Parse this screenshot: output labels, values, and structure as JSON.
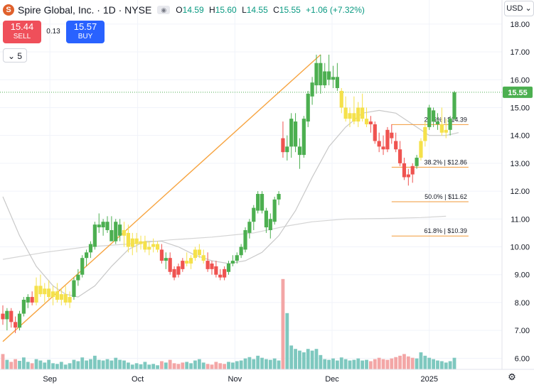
{
  "header": {
    "logo_letter": "S",
    "title": "Spire Global, Inc. · 1D · NYSE",
    "open_label": "O",
    "open": "14.59",
    "high_label": "H",
    "high": "15.60",
    "low_label": "L",
    "low": "14.55",
    "close_label": "C",
    "close": "15.55",
    "change": "+1.06 (+7.32%)"
  },
  "trade": {
    "sell_price": "15.44",
    "sell_label": "SELL",
    "spread": "0.13",
    "buy_price": "15.57",
    "buy_label": "BUY"
  },
  "indicators_toggle": {
    "count": "5"
  },
  "currency": "USD",
  "price_label": "15.55",
  "colors": {
    "up": "#4caf50",
    "down": "#ef5350",
    "neutral": "#f5e14a",
    "volume_up": "#7ec8bf",
    "volume_down": "#f3a6a6",
    "trendline": "#f7a440",
    "fib": "#f29a38",
    "ma_fast": "#c8c8c8",
    "ma_slow": "#d4d4d4"
  },
  "chart_data": {
    "type": "candlestick",
    "y_axis": {
      "min": 5.6,
      "max": 18.2,
      "ticks": [
        "18.00",
        "17.00",
        "16.00",
        "15.00",
        "14.00",
        "13.00",
        "12.00",
        "11.00",
        "10.00",
        "9.00",
        "8.00",
        "7.00",
        "6.00"
      ]
    },
    "x_axis": {
      "start": "2024-08-19",
      "end": "2025-01-10",
      "ticks": [
        {
          "label": "Sep",
          "date": "2024-09-03"
        },
        {
          "label": "Oct",
          "date": "2024-10-01"
        },
        {
          "label": "Nov",
          "date": "2024-11-01"
        },
        {
          "label": "Dec",
          "date": "2024-12-02"
        },
        {
          "label": "2025",
          "date": "2025-01-02"
        }
      ]
    },
    "last_close": 15.55,
    "candles": [
      {
        "o": 7.6,
        "h": 7.9,
        "l": 7.2,
        "c": 7.4,
        "v": 0.45,
        "k": "down"
      },
      {
        "o": 7.4,
        "h": 7.8,
        "l": 7.0,
        "c": 7.7,
        "v": 0.28,
        "k": "up"
      },
      {
        "o": 7.7,
        "h": 7.8,
        "l": 7.1,
        "c": 7.3,
        "v": 0.22,
        "k": "down"
      },
      {
        "o": 7.3,
        "h": 7.5,
        "l": 6.9,
        "c": 7.1,
        "v": 0.3,
        "k": "down"
      },
      {
        "o": 7.1,
        "h": 7.7,
        "l": 7.0,
        "c": 7.6,
        "v": 0.25,
        "k": "up"
      },
      {
        "o": 7.6,
        "h": 8.2,
        "l": 7.5,
        "c": 8.1,
        "v": 0.35,
        "k": "up"
      },
      {
        "o": 8.0,
        "h": 8.3,
        "l": 7.8,
        "c": 8.2,
        "v": 0.22,
        "k": "up"
      },
      {
        "o": 8.2,
        "h": 8.4,
        "l": 7.9,
        "c": 8.0,
        "v": 0.18,
        "k": "down"
      },
      {
        "o": 8.0,
        "h": 8.9,
        "l": 7.9,
        "c": 8.6,
        "v": 0.3,
        "k": "neutral"
      },
      {
        "o": 8.6,
        "h": 9.0,
        "l": 8.2,
        "c": 8.3,
        "v": 0.26,
        "k": "neutral"
      },
      {
        "o": 8.3,
        "h": 8.7,
        "l": 8.0,
        "c": 8.5,
        "v": 0.2,
        "k": "neutral"
      },
      {
        "o": 8.5,
        "h": 8.8,
        "l": 8.1,
        "c": 8.2,
        "v": 0.28,
        "k": "neutral"
      },
      {
        "o": 8.2,
        "h": 8.6,
        "l": 7.9,
        "c": 8.4,
        "v": 0.18,
        "k": "neutral"
      },
      {
        "o": 8.4,
        "h": 8.7,
        "l": 8.0,
        "c": 8.1,
        "v": 0.16,
        "k": "neutral"
      },
      {
        "o": 8.1,
        "h": 8.5,
        "l": 7.9,
        "c": 8.3,
        "v": 0.22,
        "k": "neutral"
      },
      {
        "o": 8.3,
        "h": 8.6,
        "l": 7.9,
        "c": 8.0,
        "v": 0.14,
        "k": "neutral"
      },
      {
        "o": 8.0,
        "h": 8.4,
        "l": 7.8,
        "c": 8.2,
        "v": 0.18,
        "k": "neutral"
      },
      {
        "o": 8.2,
        "h": 8.9,
        "l": 8.1,
        "c": 8.8,
        "v": 0.28,
        "k": "up"
      },
      {
        "o": 8.8,
        "h": 9.2,
        "l": 8.6,
        "c": 9.0,
        "v": 0.24,
        "k": "up"
      },
      {
        "o": 9.0,
        "h": 9.7,
        "l": 8.9,
        "c": 9.6,
        "v": 0.35,
        "k": "up"
      },
      {
        "o": 9.6,
        "h": 9.9,
        "l": 9.3,
        "c": 9.8,
        "v": 0.26,
        "k": "up"
      },
      {
        "o": 9.8,
        "h": 10.2,
        "l": 9.6,
        "c": 10.1,
        "v": 0.3,
        "k": "up"
      },
      {
        "o": 10.0,
        "h": 10.9,
        "l": 9.9,
        "c": 10.8,
        "v": 0.4,
        "k": "up"
      },
      {
        "o": 10.8,
        "h": 11.2,
        "l": 10.5,
        "c": 10.7,
        "v": 0.28,
        "k": "up"
      },
      {
        "o": 10.7,
        "h": 11.0,
        "l": 10.4,
        "c": 10.9,
        "v": 0.26,
        "k": "up"
      },
      {
        "o": 10.9,
        "h": 11.1,
        "l": 10.5,
        "c": 10.6,
        "v": 0.3,
        "k": "up"
      },
      {
        "o": 10.6,
        "h": 11.1,
        "l": 10.3,
        "c": 10.2,
        "v": 0.26,
        "k": "up"
      },
      {
        "o": 10.2,
        "h": 11.0,
        "l": 10.1,
        "c": 10.9,
        "v": 0.34,
        "k": "up"
      },
      {
        "o": 10.8,
        "h": 11.0,
        "l": 10.2,
        "c": 10.4,
        "v": 0.28,
        "k": "up"
      },
      {
        "o": 10.4,
        "h": 10.9,
        "l": 10.0,
        "c": 10.6,
        "v": 0.26,
        "k": "neutral"
      },
      {
        "o": 10.5,
        "h": 10.8,
        "l": 9.8,
        "c": 10.0,
        "v": 0.2,
        "k": "neutral"
      },
      {
        "o": 10.0,
        "h": 10.5,
        "l": 9.7,
        "c": 10.3,
        "v": 0.14,
        "k": "neutral"
      },
      {
        "o": 10.3,
        "h": 10.5,
        "l": 9.8,
        "c": 10.1,
        "v": 0.18,
        "k": "neutral"
      },
      {
        "o": 10.1,
        "h": 10.4,
        "l": 9.9,
        "c": 10.2,
        "v": 0.15,
        "k": "neutral"
      },
      {
        "o": 10.2,
        "h": 10.4,
        "l": 9.8,
        "c": 9.9,
        "v": 0.22,
        "k": "neutral"
      },
      {
        "o": 9.9,
        "h": 10.2,
        "l": 9.7,
        "c": 10.0,
        "v": 0.14,
        "k": "neutral"
      },
      {
        "o": 10.0,
        "h": 10.3,
        "l": 9.8,
        "c": 10.1,
        "v": 0.16,
        "k": "neutral"
      },
      {
        "o": 10.1,
        "h": 10.2,
        "l": 9.8,
        "c": 9.9,
        "v": 0.12,
        "k": "neutral"
      },
      {
        "o": 9.9,
        "h": 10.1,
        "l": 9.4,
        "c": 9.5,
        "v": 0.24,
        "k": "down"
      },
      {
        "o": 9.5,
        "h": 9.8,
        "l": 9.2,
        "c": 9.6,
        "v": 0.2,
        "k": "up"
      },
      {
        "o": 9.6,
        "h": 9.8,
        "l": 9.0,
        "c": 9.1,
        "v": 0.28,
        "k": "down"
      },
      {
        "o": 9.2,
        "h": 9.3,
        "l": 8.8,
        "c": 8.9,
        "v": 0.18,
        "k": "down"
      },
      {
        "o": 9.0,
        "h": 9.4,
        "l": 8.9,
        "c": 9.3,
        "v": 0.16,
        "k": "down"
      },
      {
        "o": 9.2,
        "h": 9.6,
        "l": 9.1,
        "c": 9.5,
        "v": 0.2,
        "k": "down"
      },
      {
        "o": 9.5,
        "h": 9.8,
        "l": 9.3,
        "c": 9.4,
        "v": 0.22,
        "k": "neutral"
      },
      {
        "o": 9.4,
        "h": 9.7,
        "l": 9.2,
        "c": 9.6,
        "v": 0.18,
        "k": "neutral"
      },
      {
        "o": 9.6,
        "h": 10.0,
        "l": 9.5,
        "c": 9.9,
        "v": 0.26,
        "k": "neutral"
      },
      {
        "o": 9.9,
        "h": 10.1,
        "l": 9.6,
        "c": 9.7,
        "v": 0.3,
        "k": "neutral"
      },
      {
        "o": 9.7,
        "h": 9.9,
        "l": 9.4,
        "c": 9.5,
        "v": 0.2,
        "k": "neutral"
      },
      {
        "o": 9.5,
        "h": 9.8,
        "l": 9.1,
        "c": 9.2,
        "v": 0.16,
        "k": "down"
      },
      {
        "o": 9.2,
        "h": 9.5,
        "l": 9.0,
        "c": 9.4,
        "v": 0.14,
        "k": "down"
      },
      {
        "o": 9.3,
        "h": 9.5,
        "l": 8.9,
        "c": 9.0,
        "v": 0.22,
        "k": "down"
      },
      {
        "o": 9.0,
        "h": 9.2,
        "l": 8.8,
        "c": 8.9,
        "v": 0.18,
        "k": "down"
      },
      {
        "o": 8.9,
        "h": 9.3,
        "l": 8.8,
        "c": 9.2,
        "v": 0.16,
        "k": "down"
      },
      {
        "o": 9.1,
        "h": 9.5,
        "l": 9.0,
        "c": 9.4,
        "v": 0.22,
        "k": "up"
      },
      {
        "o": 9.4,
        "h": 9.7,
        "l": 9.3,
        "c": 9.5,
        "v": 0.2,
        "k": "up"
      },
      {
        "o": 9.5,
        "h": 9.8,
        "l": 9.4,
        "c": 9.7,
        "v": 0.24,
        "k": "up"
      },
      {
        "o": 9.7,
        "h": 10.1,
        "l": 9.6,
        "c": 10.0,
        "v": 0.26,
        "k": "up"
      },
      {
        "o": 9.9,
        "h": 10.7,
        "l": 9.8,
        "c": 10.6,
        "v": 0.32,
        "k": "up"
      },
      {
        "o": 10.5,
        "h": 11.0,
        "l": 10.3,
        "c": 10.9,
        "v": 0.36,
        "k": "up"
      },
      {
        "o": 10.9,
        "h": 11.5,
        "l": 10.6,
        "c": 11.4,
        "v": 0.3,
        "k": "up"
      },
      {
        "o": 11.3,
        "h": 12.0,
        "l": 11.2,
        "c": 11.9,
        "v": 0.4,
        "k": "up"
      },
      {
        "o": 11.9,
        "h": 12.0,
        "l": 11.2,
        "c": 11.3,
        "v": 0.34,
        "k": "up"
      },
      {
        "o": 11.3,
        "h": 11.4,
        "l": 10.5,
        "c": 10.7,
        "v": 0.3,
        "k": "up"
      },
      {
        "o": 10.6,
        "h": 11.2,
        "l": 10.3,
        "c": 11.0,
        "v": 0.28,
        "k": "up"
      },
      {
        "o": 10.9,
        "h": 11.8,
        "l": 10.8,
        "c": 11.7,
        "v": 0.32,
        "k": "up"
      },
      {
        "o": 11.7,
        "h": 12.0,
        "l": 11.5,
        "c": 11.9,
        "v": 0.26,
        "k": "up"
      },
      {
        "o": 13.9,
        "h": 14.5,
        "l": 13.2,
        "c": 13.4,
        "v": 2.65,
        "k": "down"
      },
      {
        "o": 13.4,
        "h": 14.0,
        "l": 13.1,
        "c": 13.6,
        "v": 1.65,
        "k": "up"
      },
      {
        "o": 13.6,
        "h": 14.8,
        "l": 13.2,
        "c": 14.6,
        "v": 0.7,
        "k": "up"
      },
      {
        "o": 14.5,
        "h": 14.8,
        "l": 13.4,
        "c": 13.6,
        "v": 0.6,
        "k": "up"
      },
      {
        "o": 13.6,
        "h": 13.9,
        "l": 12.8,
        "c": 13.3,
        "v": 0.55,
        "k": "up"
      },
      {
        "o": 13.3,
        "h": 14.7,
        "l": 13.2,
        "c": 14.6,
        "v": 0.5,
        "k": "up"
      },
      {
        "o": 14.5,
        "h": 15.6,
        "l": 14.3,
        "c": 15.5,
        "v": 0.6,
        "k": "up"
      },
      {
        "o": 15.4,
        "h": 16.1,
        "l": 15.1,
        "c": 15.9,
        "v": 0.55,
        "k": "up"
      },
      {
        "o": 15.8,
        "h": 16.9,
        "l": 15.5,
        "c": 16.6,
        "v": 0.6,
        "k": "up"
      },
      {
        "o": 16.6,
        "h": 16.9,
        "l": 15.5,
        "c": 15.8,
        "v": 0.42,
        "k": "up"
      },
      {
        "o": 15.8,
        "h": 16.6,
        "l": 15.7,
        "c": 16.3,
        "v": 0.3,
        "k": "up"
      },
      {
        "o": 16.3,
        "h": 16.9,
        "l": 15.8,
        "c": 16.0,
        "v": 0.28,
        "k": "up"
      },
      {
        "o": 16.0,
        "h": 16.5,
        "l": 15.7,
        "c": 16.1,
        "v": 0.32,
        "k": "up"
      },
      {
        "o": 16.1,
        "h": 16.6,
        "l": 15.6,
        "c": 15.7,
        "v": 0.26,
        "k": "up"
      },
      {
        "o": 15.6,
        "h": 15.7,
        "l": 14.8,
        "c": 15.0,
        "v": 0.35,
        "k": "neutral"
      },
      {
        "o": 15.0,
        "h": 15.4,
        "l": 14.5,
        "c": 14.6,
        "v": 0.3,
        "k": "neutral"
      },
      {
        "o": 14.6,
        "h": 15.0,
        "l": 14.3,
        "c": 14.8,
        "v": 0.26,
        "k": "neutral"
      },
      {
        "o": 14.8,
        "h": 15.4,
        "l": 14.4,
        "c": 14.5,
        "v": 0.28,
        "k": "neutral"
      },
      {
        "o": 14.5,
        "h": 15.2,
        "l": 14.3,
        "c": 15.0,
        "v": 0.32,
        "k": "neutral"
      },
      {
        "o": 15.0,
        "h": 15.5,
        "l": 14.5,
        "c": 14.6,
        "v": 0.26,
        "k": "neutral"
      },
      {
        "o": 14.6,
        "h": 15.0,
        "l": 14.3,
        "c": 14.4,
        "v": 0.28,
        "k": "neutral"
      },
      {
        "o": 14.4,
        "h": 14.7,
        "l": 14.1,
        "c": 14.5,
        "v": 0.24,
        "k": "down"
      },
      {
        "o": 14.4,
        "h": 14.5,
        "l": 13.7,
        "c": 13.8,
        "v": 0.3,
        "k": "down"
      },
      {
        "o": 13.8,
        "h": 14.1,
        "l": 13.4,
        "c": 13.6,
        "v": 0.34,
        "k": "down"
      },
      {
        "o": 13.6,
        "h": 14.0,
        "l": 13.3,
        "c": 13.5,
        "v": 0.3,
        "k": "down"
      },
      {
        "o": 13.5,
        "h": 14.3,
        "l": 13.4,
        "c": 14.2,
        "v": 0.28,
        "k": "down"
      },
      {
        "o": 14.1,
        "h": 14.4,
        "l": 13.7,
        "c": 13.9,
        "v": 0.32,
        "k": "down"
      },
      {
        "o": 13.8,
        "h": 14.1,
        "l": 13.4,
        "c": 13.5,
        "v": 0.36,
        "k": "down"
      },
      {
        "o": 13.5,
        "h": 13.8,
        "l": 12.9,
        "c": 13.0,
        "v": 0.4,
        "k": "down"
      },
      {
        "o": 13.0,
        "h": 13.2,
        "l": 12.4,
        "c": 12.5,
        "v": 0.45,
        "k": "down"
      },
      {
        "o": 12.5,
        "h": 12.8,
        "l": 12.2,
        "c": 12.6,
        "v": 0.38,
        "k": "down"
      },
      {
        "o": 12.6,
        "h": 13.0,
        "l": 12.3,
        "c": 12.9,
        "v": 0.34,
        "k": "down"
      },
      {
        "o": 12.9,
        "h": 13.3,
        "l": 12.8,
        "c": 13.2,
        "v": 0.32,
        "k": "up"
      },
      {
        "o": 13.2,
        "h": 13.9,
        "l": 13.1,
        "c": 13.8,
        "v": 0.5,
        "k": "neutral"
      },
      {
        "o": 13.8,
        "h": 14.5,
        "l": 13.6,
        "c": 14.3,
        "v": 0.4,
        "k": "neutral"
      },
      {
        "o": 14.3,
        "h": 15.1,
        "l": 14.2,
        "c": 15.0,
        "v": 0.34,
        "k": "up"
      },
      {
        "o": 14.9,
        "h": 15.0,
        "l": 14.3,
        "c": 14.5,
        "v": 0.3,
        "k": "up"
      },
      {
        "o": 14.5,
        "h": 14.8,
        "l": 14.2,
        "c": 14.4,
        "v": 0.26,
        "k": "up"
      },
      {
        "o": 14.4,
        "h": 15.0,
        "l": 14.0,
        "c": 14.1,
        "v": 0.24,
        "k": "neutral"
      },
      {
        "o": 14.1,
        "h": 14.6,
        "l": 13.9,
        "c": 14.2,
        "v": 0.2,
        "k": "neutral"
      },
      {
        "o": 14.2,
        "h": 14.7,
        "l": 14.0,
        "c": 14.6,
        "v": 0.24,
        "k": "up"
      },
      {
        "o": 14.59,
        "h": 15.6,
        "l": 14.55,
        "c": 15.55,
        "v": 0.34,
        "k": "up"
      }
    ],
    "ma_fast": [
      [
        0,
        11.8
      ],
      [
        4,
        10.4
      ],
      [
        8,
        9.3
      ],
      [
        12,
        8.6
      ],
      [
        15,
        8.3
      ],
      [
        18,
        8.2
      ],
      [
        22,
        8.6
      ],
      [
        26,
        9.3
      ],
      [
        30,
        9.9
      ],
      [
        34,
        10.2
      ],
      [
        38,
        10.2
      ],
      [
        42,
        10.0
      ],
      [
        46,
        9.7
      ],
      [
        50,
        9.5
      ],
      [
        54,
        9.4
      ],
      [
        58,
        9.5
      ],
      [
        62,
        9.8
      ],
      [
        66,
        10.4
      ],
      [
        70,
        11.3
      ],
      [
        74,
        12.5
      ],
      [
        78,
        13.6
      ],
      [
        82,
        14.3
      ],
      [
        86,
        14.8
      ],
      [
        90,
        14.9
      ],
      [
        94,
        14.8
      ],
      [
        98,
        14.4
      ],
      [
        102,
        14.0
      ],
      [
        106,
        14.0
      ],
      [
        109,
        14.1
      ]
    ],
    "ma_slow": [
      [
        0,
        9.55
      ],
      [
        10,
        9.8
      ],
      [
        20,
        10.0
      ],
      [
        30,
        10.1
      ],
      [
        40,
        10.25
      ],
      [
        50,
        10.35
      ],
      [
        60,
        10.5
      ],
      [
        68,
        10.75
      ],
      [
        74,
        10.9
      ],
      [
        82,
        11.0
      ],
      [
        92,
        11.02
      ],
      [
        100,
        11.05
      ],
      [
        106,
        11.1
      ]
    ],
    "trendline": {
      "from": [
        0,
        6.6
      ],
      "to": [
        76,
        16.9
      ]
    },
    "fibonacci": [
      {
        "label": "23.6% | $14.39",
        "value": 14.39
      },
      {
        "label": "38.2% | $12.86",
        "value": 12.86
      },
      {
        "label": "50.0% | $11.62",
        "value": 11.62
      },
      {
        "label": "61.8% | $10.39",
        "value": 10.39
      }
    ],
    "fib_range": {
      "from": 93,
      "to": 109
    }
  }
}
